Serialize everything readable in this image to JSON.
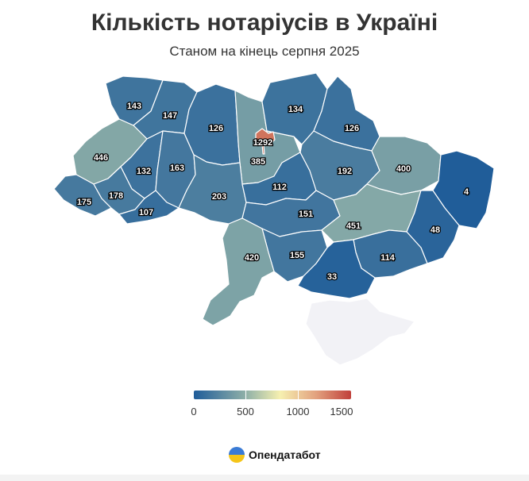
{
  "title": "Кількість нотаріусів в Україні",
  "subtitle": "Станом на кінець серпня 2025",
  "colors": {
    "scale_low": "#1f5c99",
    "scale_mid": "#8fb0a8",
    "scale_center": "#f6f0b0",
    "scale_high": "#c0403a",
    "no_data": "#f2f2f6"
  },
  "regions": [
    {
      "id": "volyn",
      "value": "143"
    },
    {
      "id": "rivne",
      "value": "147"
    },
    {
      "id": "zhytomyr",
      "value": "126"
    },
    {
      "id": "kyiv-oblast",
      "value": "385"
    },
    {
      "id": "kyiv-city",
      "value": "1292"
    },
    {
      "id": "chernihiv",
      "value": "134"
    },
    {
      "id": "sumy",
      "value": "126"
    },
    {
      "id": "lviv",
      "value": "446"
    },
    {
      "id": "ternopil",
      "value": "132"
    },
    {
      "id": "khmelnytskyi",
      "value": "163"
    },
    {
      "id": "poltava",
      "value": "192"
    },
    {
      "id": "kharkiv",
      "value": "400"
    },
    {
      "id": "luhansk",
      "value": "4"
    },
    {
      "id": "zakarpattia",
      "value": "175"
    },
    {
      "id": "ivano-frankivsk",
      "value": "178"
    },
    {
      "id": "chernivtsi",
      "value": "107"
    },
    {
      "id": "vinnytsia",
      "value": "203"
    },
    {
      "id": "cherkasy",
      "value": "112"
    },
    {
      "id": "kirovohrad",
      "value": "151"
    },
    {
      "id": "dnipropetrovsk",
      "value": "451"
    },
    {
      "id": "donetsk",
      "value": "48"
    },
    {
      "id": "odesa",
      "value": "420"
    },
    {
      "id": "mykolaiv",
      "value": "155"
    },
    {
      "id": "zaporizhzhia",
      "value": "114"
    },
    {
      "id": "kherson",
      "value": "33"
    },
    {
      "id": "crimea",
      "value": null
    }
  ],
  "legend": {
    "ticks": [
      "0",
      "500",
      "1000",
      "1500"
    ]
  },
  "brand": {
    "name": "Опендатабот"
  }
}
